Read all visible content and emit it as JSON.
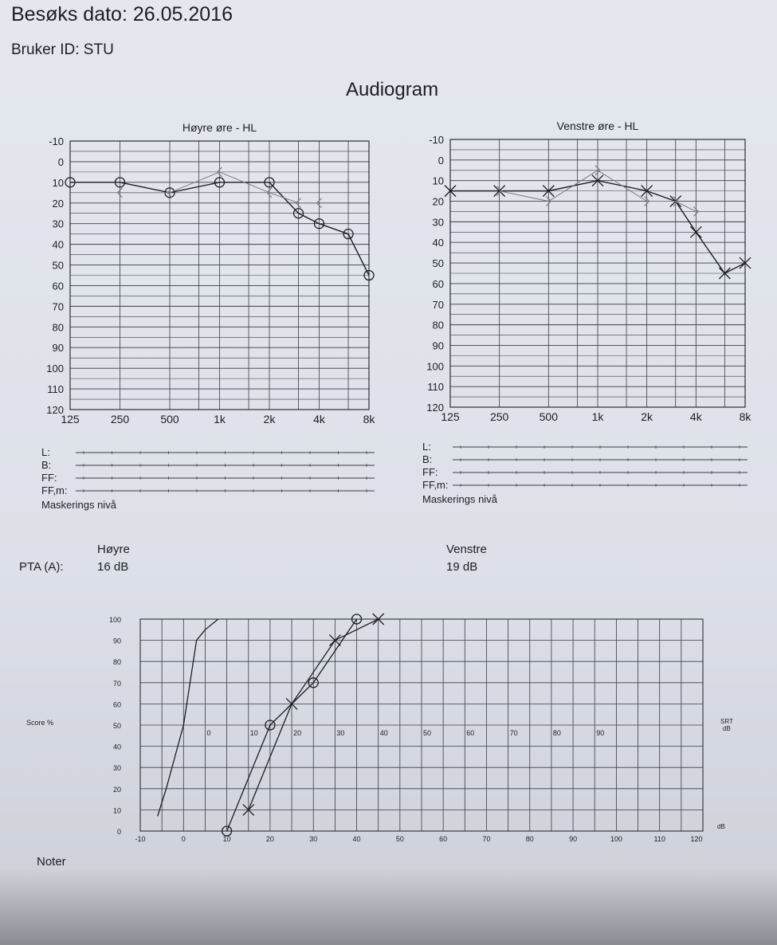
{
  "header": {
    "visit_date": "Besøks dato: 26.05.2016",
    "user_id": "Bruker ID: STU",
    "title": "Audiogram"
  },
  "masking": {
    "rows": [
      "L:",
      "B:",
      "FF:",
      "FF,m:"
    ],
    "caption": "Maskerings nivå"
  },
  "pta": {
    "label": "PTA (A):",
    "right_header": "Høyre",
    "right_value": "16 dB",
    "left_header": "Venstre",
    "left_value": "19 dB"
  },
  "notes_label": "Noter",
  "colors": {
    "ink": "#1c1e24",
    "grid": "#3a3c44",
    "faint": "#7a7c86",
    "paper": "#e4e7ee"
  },
  "chart_data": [
    {
      "type": "line",
      "title": "Høyre øre - HL",
      "x_tick_labels": [
        "125",
        "250",
        "500",
        "1k",
        "2k",
        "4k",
        "8k"
      ],
      "ylim": [
        120,
        -10
      ],
      "y_ticks": [
        -10,
        0,
        10,
        20,
        30,
        40,
        50,
        60,
        70,
        80,
        90,
        100,
        110,
        120
      ],
      "grid": true,
      "series": [
        {
          "marker": "circle",
          "x": [
            125,
            250,
            500,
            1000,
            2000,
            3000,
            4000,
            6000,
            8000
          ],
          "y": [
            10,
            10,
            15,
            10,
            10,
            25,
            30,
            35,
            55
          ]
        },
        {
          "marker": "bone-right",
          "x": [
            250,
            500,
            1000,
            2000,
            3000,
            4000
          ],
          "y": [
            15,
            15,
            5,
            15,
            20,
            20
          ]
        }
      ]
    },
    {
      "type": "line",
      "title": "Venstre øre - HL",
      "x_tick_labels": [
        "125",
        "250",
        "500",
        "1k",
        "2k",
        "4k",
        "8k"
      ],
      "ylim": [
        120,
        -10
      ],
      "y_ticks": [
        -10,
        0,
        10,
        20,
        30,
        40,
        50,
        60,
        70,
        80,
        90,
        100,
        110,
        120
      ],
      "grid": true,
      "series": [
        {
          "marker": "x",
          "x": [
            125,
            250,
            500,
            1000,
            2000,
            3000,
            4000,
            6000,
            8000
          ],
          "y": [
            15,
            15,
            15,
            10,
            15,
            20,
            35,
            55,
            50
          ]
        },
        {
          "marker": "bone-left",
          "x": [
            250,
            500,
            1000,
            2000,
            3000,
            4000
          ],
          "y": [
            15,
            20,
            5,
            20,
            20,
            25
          ]
        }
      ]
    },
    {
      "type": "line",
      "ylabel": "Score %",
      "xlabel": "dB",
      "secondary_label": "SRT dB",
      "xlim": [
        -10,
        120
      ],
      "ylim": [
        0,
        100
      ],
      "x_ticks": [
        -10,
        0,
        10,
        20,
        30,
        40,
        50,
        60,
        70,
        80,
        90,
        100,
        110,
        120
      ],
      "y_ticks": [
        0,
        10,
        20,
        30,
        40,
        50,
        60,
        70,
        80,
        90,
        100
      ],
      "srt_ticks": [
        0,
        10,
        20,
        30,
        40,
        50,
        60,
        70,
        80,
        90
      ],
      "grid": true,
      "series": [
        {
          "marker": "none",
          "x": [
            -6,
            -4,
            0,
            3,
            5,
            8
          ],
          "y": [
            7,
            20,
            50,
            90,
            95,
            100
          ]
        },
        {
          "marker": "circle",
          "x": [
            10,
            20,
            30,
            40
          ],
          "y": [
            0,
            50,
            70,
            100
          ]
        },
        {
          "marker": "x",
          "x": [
            15,
            25,
            35,
            45
          ],
          "y": [
            10,
            60,
            90,
            100
          ]
        }
      ]
    }
  ]
}
